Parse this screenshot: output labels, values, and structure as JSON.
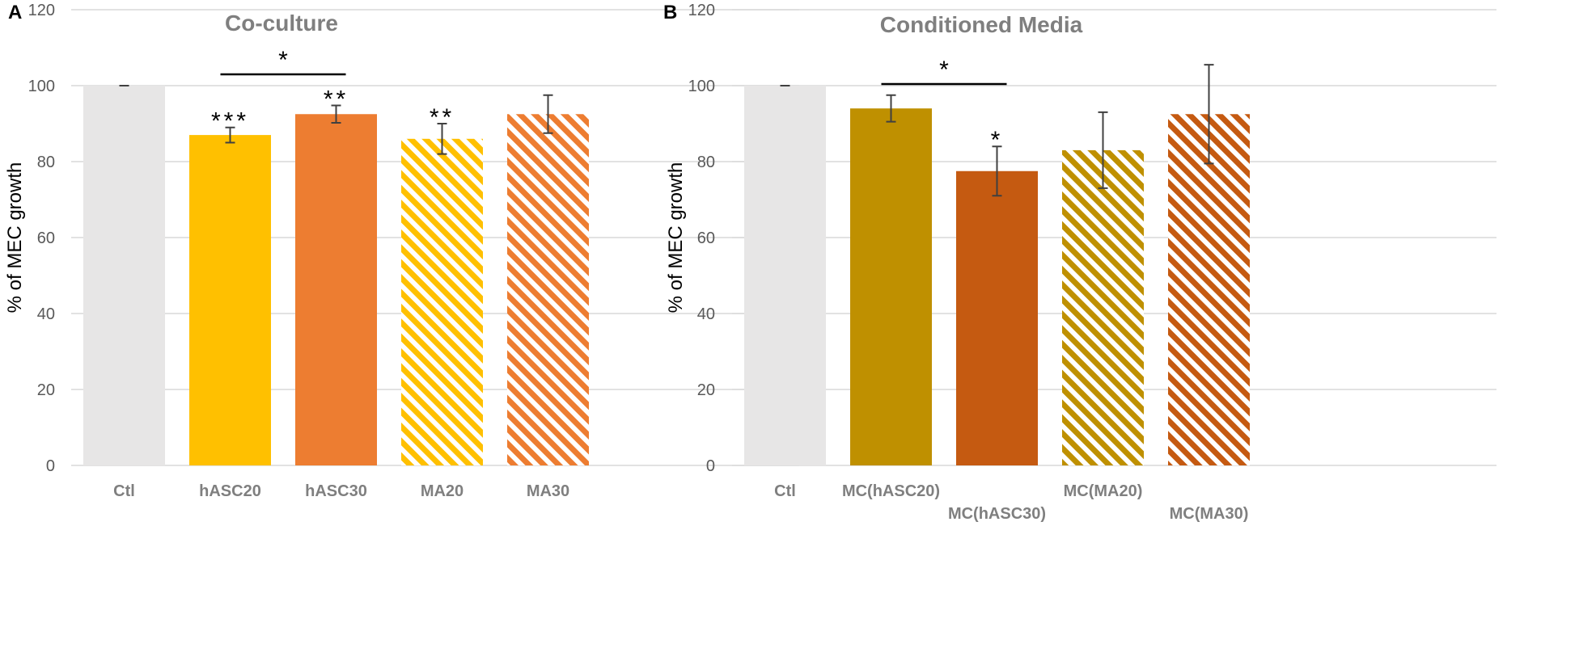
{
  "chart_data": [
    {
      "panel_label": "A",
      "type": "bar",
      "title": "Co-culture",
      "ylabel": "% of MEC growth",
      "xlabel": "",
      "ylim": [
        0,
        120
      ],
      "yticks": [
        0,
        20,
        40,
        60,
        80,
        100,
        120
      ],
      "grid": true,
      "categories": [
        "Ctl",
        "hASC20",
        "hASC30",
        "MA20",
        "MA30"
      ],
      "values": [
        100,
        87,
        92.5,
        86,
        92.5
      ],
      "errors": [
        0,
        2,
        2.3,
        4,
        5
      ],
      "colors": [
        "#e7e6e6",
        "#ffc000",
        "#ed7d31",
        "#ffc000",
        "#ed7d31"
      ],
      "patterns": [
        "solid",
        "solid",
        "solid",
        "stripes",
        "stripes"
      ],
      "significance": [
        "",
        "***",
        "**",
        "**",
        ""
      ],
      "brackets": [
        {
          "from": "hASC20",
          "to": "hASC30",
          "label": "*"
        }
      ]
    },
    {
      "panel_label": "B",
      "type": "bar",
      "title": "Conditioned Media",
      "ylabel": "% of MEC growth",
      "xlabel": "",
      "ylim": [
        0,
        120
      ],
      "yticks": [
        0,
        20,
        40,
        60,
        80,
        100,
        120
      ],
      "grid": true,
      "categories": [
        "Ctl",
        "MC(hASC20)",
        "MC(hASC30)",
        "MC(MA20)",
        "MC(MA30)"
      ],
      "values": [
        100,
        94,
        77.5,
        83,
        92.5
      ],
      "errors": [
        0,
        3.5,
        6.5,
        10,
        13
      ],
      "colors": [
        "#e7e6e6",
        "#bf9000",
        "#c55a11",
        "#bf9000",
        "#c55a11"
      ],
      "patterns": [
        "solid",
        "solid",
        "solid",
        "stripes",
        "stripes"
      ],
      "significance": [
        "",
        "",
        "*",
        "",
        ""
      ],
      "brackets": [
        {
          "from": "MC(hASC20)",
          "to": "MC(hASC30)",
          "label": "*"
        }
      ]
    }
  ]
}
